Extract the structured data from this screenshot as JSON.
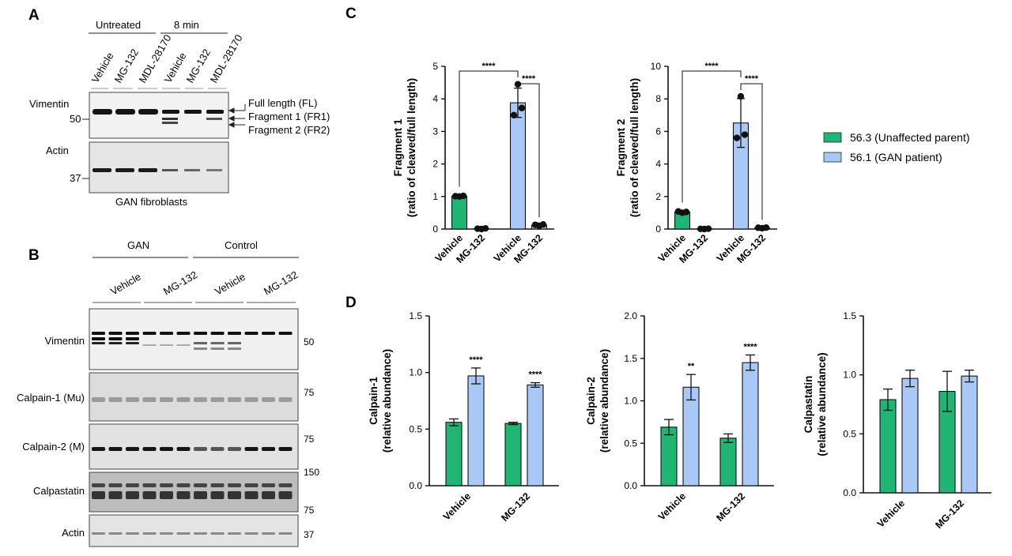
{
  "panel_a": {
    "letter": "A",
    "group_labels": [
      "Untreated",
      "8 min"
    ],
    "lane_labels": [
      "Vehicle",
      "MG-132",
      "MDL-28170",
      "Vehicle",
      "MG-132",
      "MDL-28170"
    ],
    "protein_labels": [
      "Vimentin",
      "Actin"
    ],
    "mw_markers": [
      "50",
      "37"
    ],
    "band_labels": [
      "Full length (FL)",
      "Fragment 1 (FR1)",
      "Fragment 2 (FR2)"
    ],
    "caption": "GAN fibroblasts"
  },
  "panel_b": {
    "letter": "B",
    "group_labels": [
      "GAN",
      "Control"
    ],
    "lane_labels": [
      "Vehicle",
      "MG-132",
      "Vehicle",
      "MG-132"
    ],
    "protein_labels": [
      "Vimentin",
      "Calpain-1 (Mu)",
      "Calpain-2 (M)",
      "Calpastatin",
      "Actin"
    ],
    "mw_markers": [
      "50",
      "75",
      "75",
      "150",
      "75",
      "37"
    ]
  },
  "panel_c": {
    "letter": "C"
  },
  "panel_d": {
    "letter": "D"
  },
  "legend": {
    "items": [
      {
        "label": "56.3 (Unaffected parent)",
        "color": "#20b573"
      },
      {
        "label": "56.1 (GAN patient)",
        "color": "#a8c8f5"
      }
    ]
  },
  "colors": {
    "parent": "#20b573",
    "patient": "#a8c8f5"
  },
  "chart_data": [
    {
      "id": "c1",
      "type": "bar",
      "ylabel": [
        "Fragment 1",
        "(ratio of cleaved/full length)"
      ],
      "ylim": [
        0,
        5
      ],
      "yticks": [
        0,
        1,
        2,
        3,
        4,
        5
      ],
      "bars": [
        {
          "x": "Vehicle",
          "series": "56.3 (Unaffected parent)",
          "value": 1.01,
          "err": 0.02,
          "points": [
            1.0,
            1.01,
            1.02
          ]
        },
        {
          "x": "MG-132",
          "series": "56.3 (Unaffected parent)",
          "value": 0.01,
          "err": 0.01,
          "points": [
            0.0,
            0.01,
            0.02
          ]
        },
        {
          "x": "Vehicle",
          "series": "56.1 (GAN patient)",
          "value": 3.88,
          "err": 0.45,
          "points": [
            4.45,
            3.5,
            3.72
          ]
        },
        {
          "x": "MG-132",
          "series": "56.1 (GAN patient)",
          "value": 0.12,
          "err": 0.03,
          "points": [
            0.1,
            0.13,
            0.14
          ]
        }
      ],
      "brackets": [
        {
          "from": 0,
          "to": 2,
          "label": "****"
        },
        {
          "from": 2,
          "to": 3,
          "label": "****"
        }
      ]
    },
    {
      "id": "c2",
      "type": "bar",
      "ylabel": [
        "Fragment 2",
        "(ratio of cleaved/full length)"
      ],
      "ylim": [
        0,
        10
      ],
      "yticks": [
        0,
        2,
        4,
        6,
        8,
        10
      ],
      "bars": [
        {
          "x": "Vehicle",
          "series": "56.3 (Unaffected parent)",
          "value": 1.05,
          "err": 0.06,
          "points": [
            1.0,
            1.08,
            1.05
          ]
        },
        {
          "x": "MG-132",
          "series": "56.3 (Unaffected parent)",
          "value": 0.01,
          "err": 0.01,
          "points": [
            0.0,
            0.01,
            0.02
          ]
        },
        {
          "x": "Vehicle",
          "series": "56.1 (GAN patient)",
          "value": 6.52,
          "err": 1.5,
          "points": [
            8.15,
            5.6,
            5.8
          ]
        },
        {
          "x": "MG-132",
          "series": "56.1 (GAN patient)",
          "value": 0.07,
          "err": 0.02,
          "points": [
            0.05,
            0.08,
            0.09
          ]
        }
      ],
      "brackets": [
        {
          "from": 0,
          "to": 2,
          "label": "****"
        },
        {
          "from": 2,
          "to": 3,
          "label": "****"
        }
      ]
    },
    {
      "id": "d1",
      "type": "bar",
      "categories": [
        "Vehicle",
        "MG-132"
      ],
      "ylabel": [
        "Calpain-1",
        "(relative abundance)"
      ],
      "ylim": [
        0,
        1.5
      ],
      "yticks": [
        "0.0",
        "0.5",
        "1.0",
        "1.5"
      ],
      "series": [
        {
          "name": "56.3 (Unaffected parent)",
          "values": [
            0.56,
            0.55
          ],
          "err": [
            0.03,
            0.01
          ]
        },
        {
          "name": "56.1 (GAN patient)",
          "values": [
            0.97,
            0.89
          ],
          "err": [
            0.07,
            0.02
          ]
        }
      ],
      "sig": [
        "****",
        "****"
      ]
    },
    {
      "id": "d2",
      "type": "bar",
      "categories": [
        "Vehicle",
        "MG-132"
      ],
      "ylabel": [
        "Calpain-2",
        "(relative abundance)"
      ],
      "ylim": [
        0,
        2.0
      ],
      "yticks": [
        "0.0",
        "0.5",
        "1.0",
        "1.5",
        "2.0"
      ],
      "series": [
        {
          "name": "56.3 (Unaffected parent)",
          "values": [
            0.69,
            0.56
          ],
          "err": [
            0.09,
            0.05
          ]
        },
        {
          "name": "56.1 (GAN patient)",
          "values": [
            1.16,
            1.45
          ],
          "err": [
            0.15,
            0.09
          ]
        }
      ],
      "sig": [
        "**",
        "****"
      ]
    },
    {
      "id": "d3",
      "type": "bar",
      "categories": [
        "Vehicle",
        "MG-132"
      ],
      "ylabel": [
        "Calpastatin",
        "(relative abundance)"
      ],
      "ylim": [
        0,
        1.5
      ],
      "yticks": [
        "0.0",
        "0.5",
        "1.0",
        "1.5"
      ],
      "series": [
        {
          "name": "56.3 (Unaffected parent)",
          "values": [
            0.79,
            0.86
          ],
          "err": [
            0.09,
            0.17
          ]
        },
        {
          "name": "56.1 (GAN patient)",
          "values": [
            0.97,
            0.99
          ],
          "err": [
            0.07,
            0.05
          ]
        }
      ],
      "sig": [
        "",
        ""
      ]
    }
  ]
}
